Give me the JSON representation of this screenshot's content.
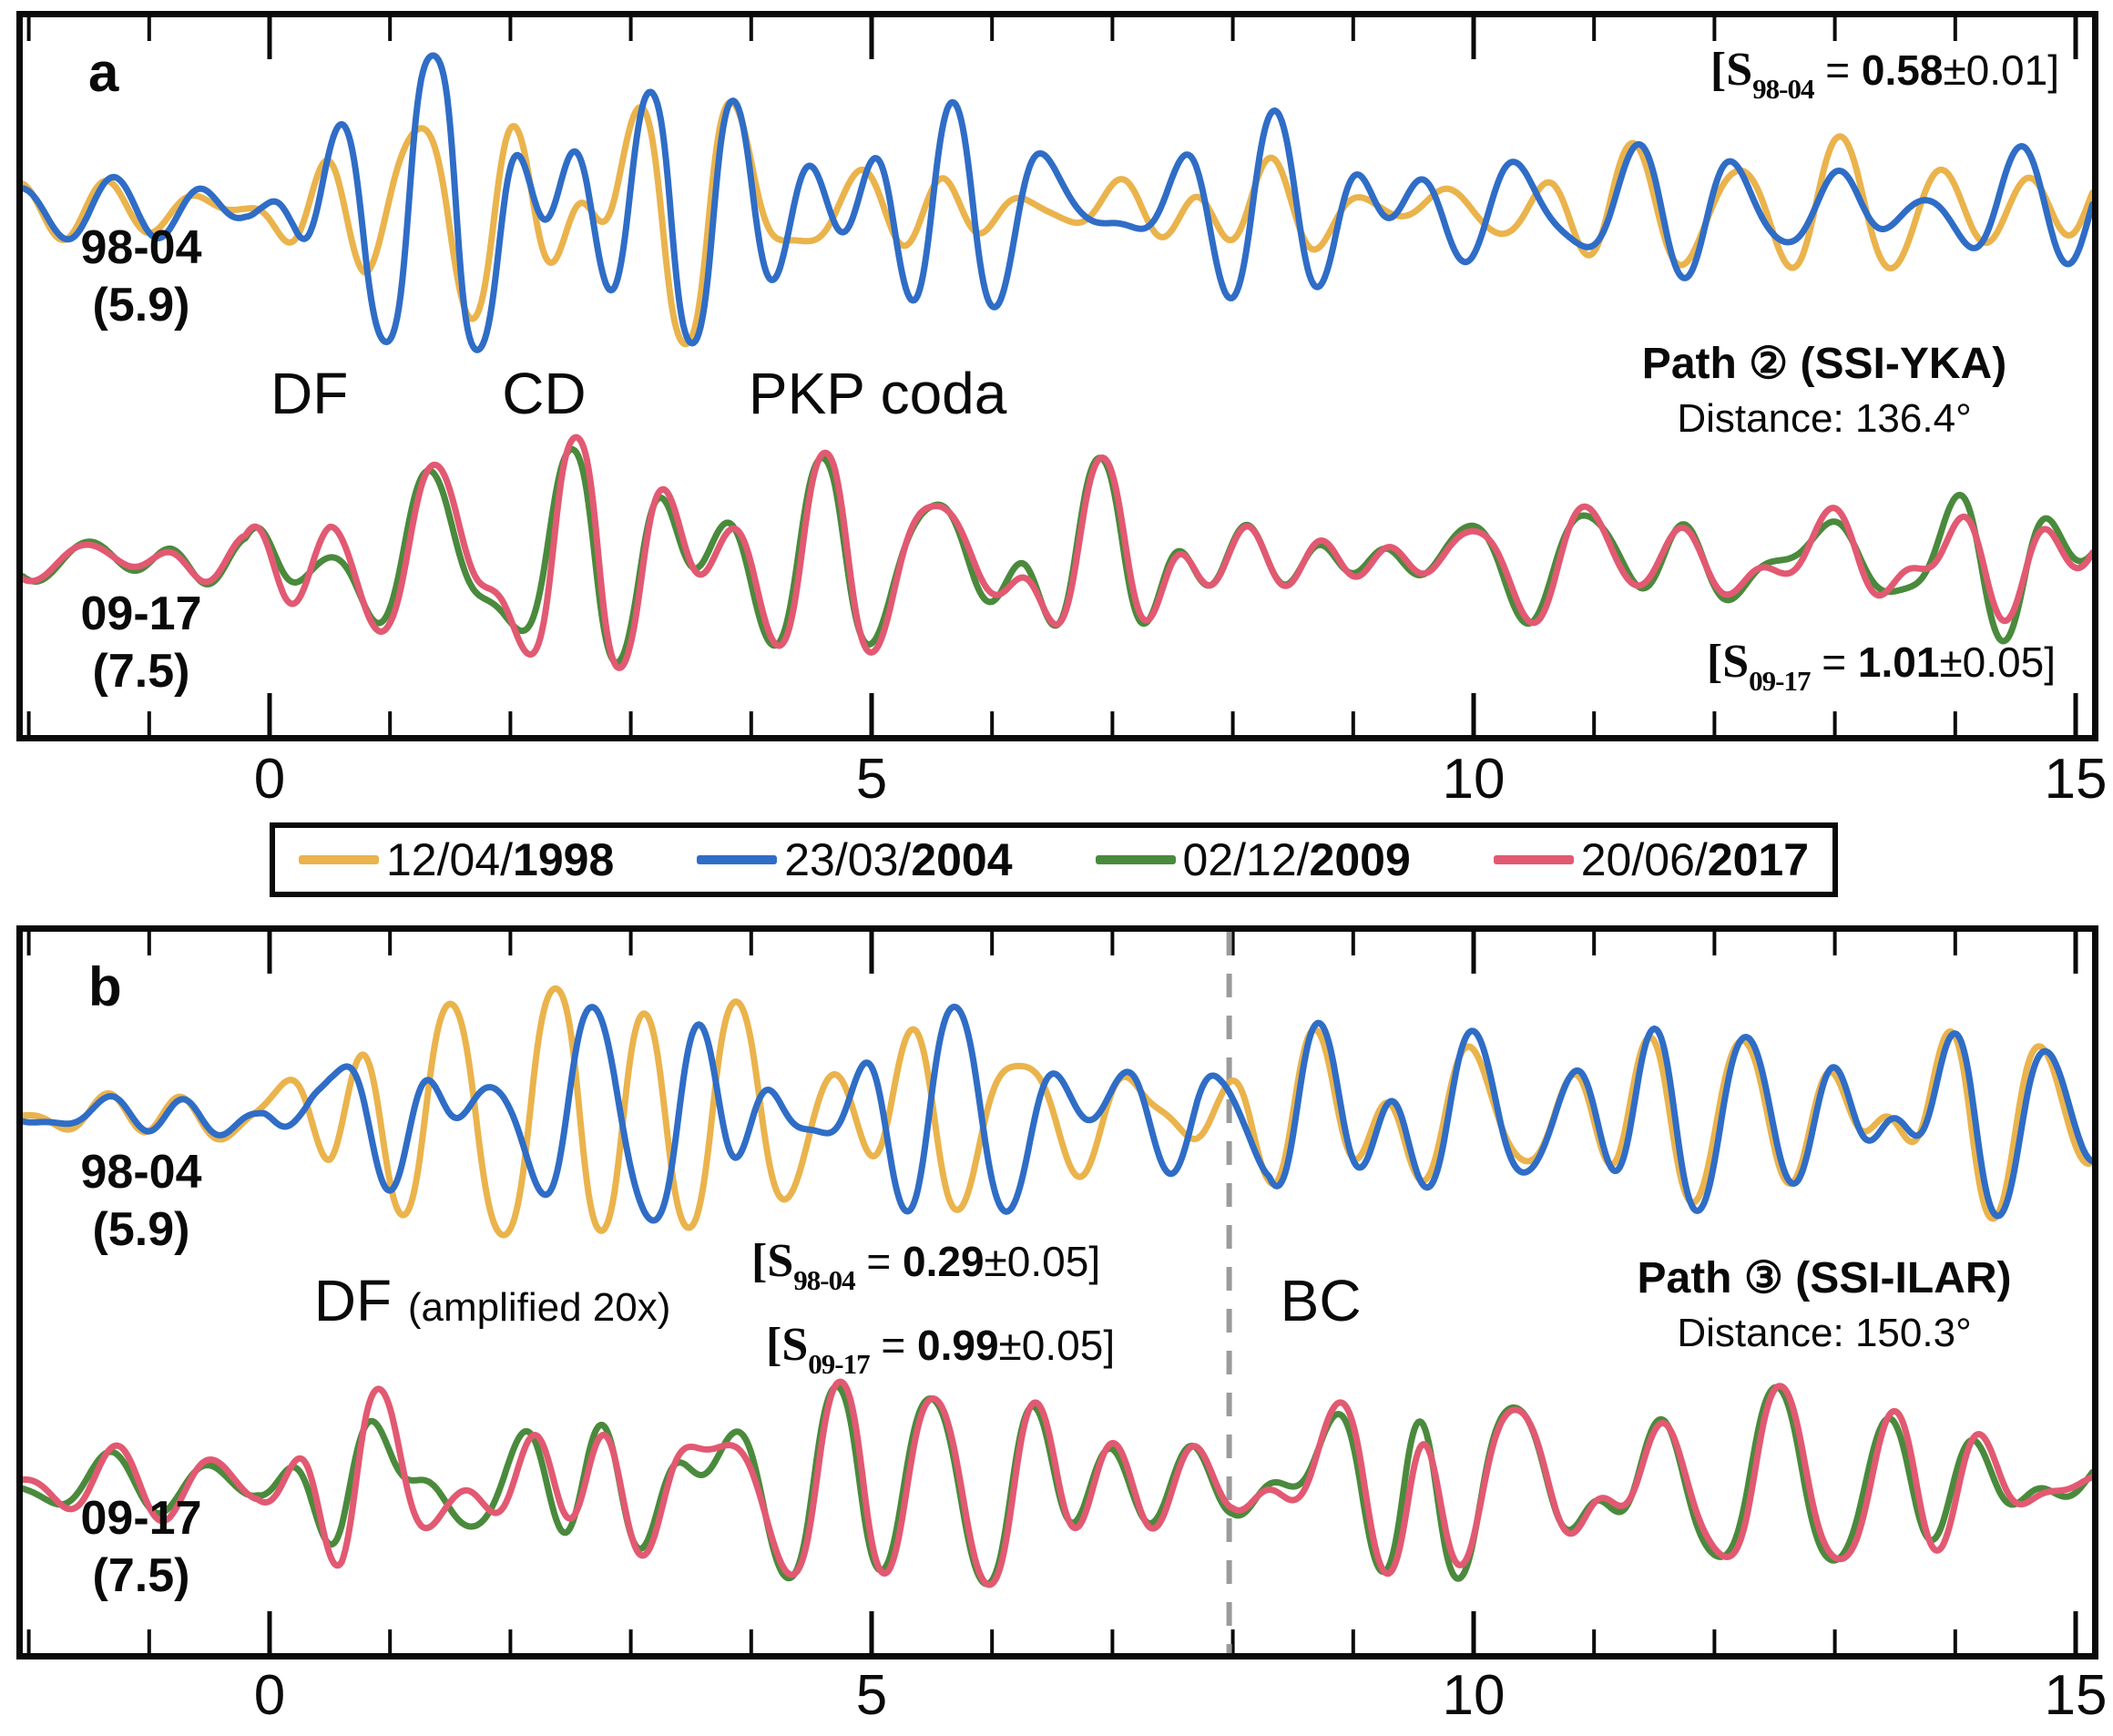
{
  "figure": {
    "panels": {
      "a": {
        "label": "a",
        "pair_top_label": [
          "98-04",
          "(5.9)"
        ],
        "pair_bottom_label": [
          "09-17",
          "(7.5)"
        ],
        "similarity_top": {
          "s": "[S",
          "sub": "98-04",
          "eq": " = ",
          "value": "0.58",
          "err": "±0.01]"
        },
        "similarity_bottom": {
          "s": "[S",
          "sub": "09-17",
          "eq": " = ",
          "value": "1.01",
          "err": "±0.05]"
        },
        "path_title": "Path ② (SSI-YKA)",
        "distance": "Distance: 136.4°"
      },
      "b": {
        "label": "b",
        "pair_top_label": [
          "98-04",
          "(5.9)"
        ],
        "pair_bottom_label": [
          "09-17",
          "(7.5)"
        ],
        "similarity_top": {
          "s": "[S",
          "sub": "98-04",
          "eq": " = ",
          "value": "0.29",
          "err": "±0.05]"
        },
        "similarity_bottom": {
          "s": "[S",
          "sub": "09-17",
          "eq": " = ",
          "value": "0.99",
          "err": "±0.05]"
        },
        "path_title": "Path ③ (SSI-ILAR)",
        "distance": "Distance: 150.3°"
      }
    },
    "legend": {
      "items": [
        {
          "date": "12/04/",
          "year": "1998",
          "color": "#EAB34C"
        },
        {
          "date": "23/03/",
          "year": "2004",
          "color": "#2F6DC6"
        },
        {
          "date": "02/12/",
          "year": "2009",
          "color": "#4A8A3C"
        },
        {
          "date": "20/06/",
          "year": "2017",
          "color": "#E25972"
        }
      ]
    }
  },
  "chart_data": {
    "type": "line",
    "x_axis": {
      "min": -2.05,
      "max": 15.14,
      "major_ticks": [
        0,
        5,
        10,
        15
      ],
      "minor_step": 1
    },
    "grid": false,
    "legend_position": "between-panels",
    "panels": [
      {
        "id": "a",
        "station": "SSI-YKA",
        "distance_deg": 136.4,
        "phase_labels": [
          {
            "text": "DF",
            "t": 0.33
          },
          {
            "text": "CD",
            "t": 2.28
          },
          {
            "text": "PKP coda",
            "t": 5.05
          }
        ],
        "pairs": [
          {
            "events": [
              "12/04/1998",
              "23/03/2004"
            ],
            "magnitude": "5.9",
            "similarity": 0.58,
            "similarity_err": 0.01,
            "colors": [
              "#EAB34C",
              "#2F6DC6"
            ],
            "seed": 11,
            "amp_ratio": 1.0,
            "lag": 0.05,
            "envelope": [
              [
                -2.1,
                26
              ],
              [
                -0.2,
                26
              ],
              [
                0.45,
                140
              ],
              [
                0.8,
                190
              ],
              [
                1.6,
                185
              ],
              [
                2.5,
                190
              ],
              [
                3.2,
                150
              ],
              [
                4.4,
                165
              ],
              [
                5.2,
                140
              ],
              [
                6,
                110
              ],
              [
                7,
                95
              ],
              [
                8.5,
                90
              ],
              [
                10,
                95
              ],
              [
                12,
                85
              ],
              [
                15.2,
                80
              ]
            ],
            "corr": [
              [
                -2.1,
                0.9
              ],
              [
                -0.05,
                0.88
              ],
              [
                0.2,
                0.5
              ],
              [
                5,
                0.55
              ],
              [
                7,
                0.7
              ],
              [
                15.2,
                0.78
              ]
            ]
          },
          {
            "events": [
              "02/12/2009",
              "20/06/2017"
            ],
            "magnitude": "7.5",
            "similarity": 1.01,
            "similarity_err": 0.05,
            "colors": [
              "#4A8A3C",
              "#E25972"
            ],
            "seed": 47,
            "amp_ratio": 1.04,
            "lag": 0.015,
            "envelope": [
              [
                -2.1,
                28
              ],
              [
                -0.2,
                30
              ],
              [
                0.5,
                175
              ],
              [
                1,
                140
              ],
              [
                1.7,
                165
              ],
              [
                2.4,
                135
              ],
              [
                3,
                100
              ],
              [
                3.8,
                110
              ],
              [
                4.7,
                125
              ],
              [
                5.5,
                95
              ],
              [
                6.5,
                100
              ],
              [
                8,
                85
              ],
              [
                10,
                90
              ],
              [
                12,
                80
              ],
              [
                15.2,
                85
              ]
            ],
            "corr": [
              [
                -2.1,
                0.95
              ],
              [
                15.2,
                0.96
              ]
            ]
          }
        ]
      },
      {
        "id": "b",
        "station": "SSI-ILAR",
        "distance_deg": 150.3,
        "bc_line_t": 7.97,
        "phase_labels": [
          {
            "text": "DF",
            "note": "(amplified 20x)",
            "t": 1.85
          },
          {
            "text": "BC",
            "t": 8.73
          }
        ],
        "pairs": [
          {
            "events": [
              "12/04/1998",
              "23/03/2004"
            ],
            "magnitude": "5.9",
            "similarity": 0.29,
            "similarity_err": 0.05,
            "colors": [
              "#EAB34C",
              "#2F6DC6"
            ],
            "seed": 83,
            "amp_ratio": 1.0,
            "lag": 0.04,
            "envelope": [
              [
                -2.1,
                28
              ],
              [
                -0.1,
                30
              ],
              [
                0.5,
                115
              ],
              [
                1.5,
                130
              ],
              [
                3.2,
                140
              ],
              [
                5.5,
                125
              ],
              [
                7.2,
                95
              ],
              [
                7.9,
                60
              ],
              [
                8.3,
                70
              ],
              [
                8.9,
                120
              ],
              [
                9.45,
                190
              ],
              [
                10.1,
                150
              ],
              [
                10.8,
                115
              ],
              [
                12,
                110
              ],
              [
                13.5,
                115
              ],
              [
                15.2,
                110
              ]
            ],
            "corr": [
              [
                -2.1,
                0.92
              ],
              [
                -0.05,
                0.9
              ],
              [
                0.3,
                0.3
              ],
              [
                7.7,
                0.3
              ],
              [
                8.3,
                0.995
              ],
              [
                15.2,
                0.995
              ]
            ]
          },
          {
            "events": [
              "02/12/2009",
              "20/06/2017"
            ],
            "magnitude": "7.5",
            "similarity": 0.99,
            "similarity_err": 0.05,
            "colors": [
              "#4A8A3C",
              "#E25972"
            ],
            "seed": 129,
            "amp_ratio": 1.03,
            "lag": 0.02,
            "envelope": [
              [
                -2.1,
                30
              ],
              [
                -0.1,
                32
              ],
              [
                0.6,
                135
              ],
              [
                1.2,
                120
              ],
              [
                2.5,
                105
              ],
              [
                4,
                110
              ],
              [
                6,
                95
              ],
              [
                7.3,
                75
              ],
              [
                8,
                45
              ],
              [
                8.6,
                80
              ],
              [
                9.45,
                190
              ],
              [
                10.2,
                140
              ],
              [
                11,
                115
              ],
              [
                13,
                105
              ],
              [
                15.2,
                95
              ]
            ],
            "corr": [
              [
                -2.1,
                0.9
              ],
              [
                0.3,
                0.85
              ],
              [
                1.5,
                0.95
              ],
              [
                8,
                0.98
              ],
              [
                15.2,
                0.985
              ]
            ]
          }
        ]
      }
    ]
  }
}
